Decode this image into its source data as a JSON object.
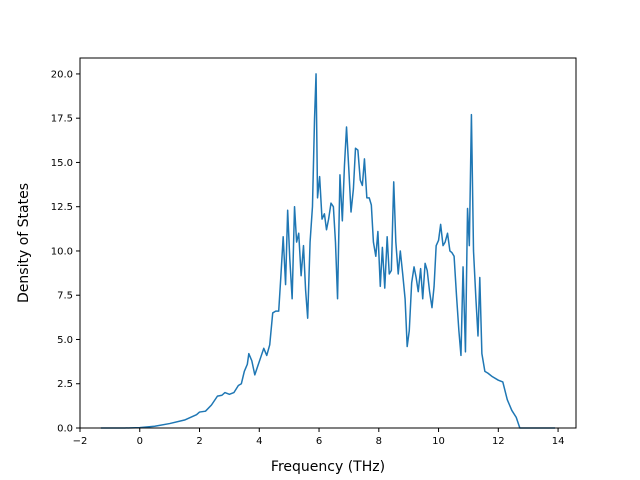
{
  "chart_data": {
    "type": "line",
    "title": "",
    "xlabel": "Frequency (THz)",
    "ylabel": "Density of States",
    "xlim": [
      -2.0,
      14.6
    ],
    "ylim": [
      0,
      20.9
    ],
    "xticks": [
      -2,
      0,
      2,
      4,
      6,
      8,
      10,
      12,
      14
    ],
    "xtick_labels": [
      "−2",
      "0",
      "2",
      "4",
      "6",
      "8",
      "10",
      "12",
      "14"
    ],
    "yticks": [
      0,
      2.5,
      5,
      7.5,
      10,
      12.5,
      15,
      17.5,
      20
    ],
    "ytick_labels": [
      "0.0",
      "2.5",
      "5.0",
      "7.5",
      "10.0",
      "12.5",
      "15.0",
      "17.5",
      "20.0"
    ],
    "grid": false,
    "legend": "none",
    "series": [
      {
        "color": "#1f77b4",
        "points": [
          [
            -1.3,
            0.0
          ],
          [
            -0.5,
            0.0
          ],
          [
            0.0,
            0.02
          ],
          [
            0.5,
            0.1
          ],
          [
            1.0,
            0.25
          ],
          [
            1.5,
            0.45
          ],
          [
            1.9,
            0.75
          ],
          [
            2.0,
            0.9
          ],
          [
            2.2,
            0.95
          ],
          [
            2.4,
            1.3
          ],
          [
            2.6,
            1.8
          ],
          [
            2.75,
            1.85
          ],
          [
            2.85,
            2.0
          ],
          [
            3.0,
            1.9
          ],
          [
            3.15,
            2.0
          ],
          [
            3.3,
            2.4
          ],
          [
            3.4,
            2.5
          ],
          [
            3.5,
            3.2
          ],
          [
            3.6,
            3.6
          ],
          [
            3.65,
            4.2
          ],
          [
            3.75,
            3.8
          ],
          [
            3.85,
            3.0
          ],
          [
            3.95,
            3.5
          ],
          [
            4.05,
            4.0
          ],
          [
            4.15,
            4.5
          ],
          [
            4.25,
            4.1
          ],
          [
            4.35,
            4.7
          ],
          [
            4.45,
            6.5
          ],
          [
            4.55,
            6.6
          ],
          [
            4.65,
            6.6
          ],
          [
            4.72,
            8.5
          ],
          [
            4.8,
            10.8
          ],
          [
            4.88,
            8.1
          ],
          [
            4.95,
            12.3
          ],
          [
            5.02,
            9.6
          ],
          [
            5.1,
            7.3
          ],
          [
            5.18,
            12.5
          ],
          [
            5.25,
            10.5
          ],
          [
            5.32,
            11.0
          ],
          [
            5.4,
            8.6
          ],
          [
            5.48,
            10.3
          ],
          [
            5.55,
            7.8
          ],
          [
            5.62,
            6.2
          ],
          [
            5.7,
            10.5
          ],
          [
            5.78,
            12.5
          ],
          [
            5.85,
            17.5
          ],
          [
            5.9,
            20.0
          ],
          [
            5.95,
            13.0
          ],
          [
            6.02,
            14.2
          ],
          [
            6.1,
            11.8
          ],
          [
            6.18,
            12.1
          ],
          [
            6.25,
            11.2
          ],
          [
            6.32,
            11.8
          ],
          [
            6.4,
            12.7
          ],
          [
            6.48,
            12.5
          ],
          [
            6.55,
            10.5
          ],
          [
            6.62,
            7.3
          ],
          [
            6.7,
            14.3
          ],
          [
            6.78,
            11.7
          ],
          [
            6.85,
            14.8
          ],
          [
            6.92,
            17.0
          ],
          [
            7.0,
            14.5
          ],
          [
            7.07,
            12.2
          ],
          [
            7.15,
            13.5
          ],
          [
            7.22,
            15.8
          ],
          [
            7.3,
            15.7
          ],
          [
            7.38,
            14.0
          ],
          [
            7.45,
            13.7
          ],
          [
            7.52,
            15.2
          ],
          [
            7.6,
            13.0
          ],
          [
            7.68,
            13.0
          ],
          [
            7.75,
            12.6
          ],
          [
            7.82,
            10.5
          ],
          [
            7.9,
            9.7
          ],
          [
            7.97,
            11.1
          ],
          [
            8.05,
            8.0
          ],
          [
            8.12,
            10.2
          ],
          [
            8.2,
            7.9
          ],
          [
            8.28,
            10.8
          ],
          [
            8.35,
            8.7
          ],
          [
            8.42,
            8.9
          ],
          [
            8.5,
            13.9
          ],
          [
            8.57,
            10.5
          ],
          [
            8.65,
            8.7
          ],
          [
            8.72,
            10.0
          ],
          [
            8.8,
            8.7
          ],
          [
            8.88,
            7.3
          ],
          [
            8.95,
            4.6
          ],
          [
            9.02,
            5.5
          ],
          [
            9.1,
            8.2
          ],
          [
            9.18,
            9.1
          ],
          [
            9.25,
            8.5
          ],
          [
            9.32,
            7.7
          ],
          [
            9.4,
            9.0
          ],
          [
            9.47,
            7.3
          ],
          [
            9.55,
            9.3
          ],
          [
            9.62,
            8.9
          ],
          [
            9.7,
            7.7
          ],
          [
            9.78,
            6.8
          ],
          [
            9.85,
            8.0
          ],
          [
            9.92,
            10.3
          ],
          [
            10.0,
            10.6
          ],
          [
            10.07,
            11.5
          ],
          [
            10.15,
            10.3
          ],
          [
            10.22,
            10.5
          ],
          [
            10.3,
            11.0
          ],
          [
            10.38,
            10.0
          ],
          [
            10.45,
            9.9
          ],
          [
            10.52,
            9.7
          ],
          [
            10.6,
            7.5
          ],
          [
            10.68,
            5.5
          ],
          [
            10.75,
            4.1
          ],
          [
            10.82,
            9.1
          ],
          [
            10.9,
            4.3
          ],
          [
            10.97,
            12.4
          ],
          [
            11.03,
            10.3
          ],
          [
            11.1,
            17.7
          ],
          [
            11.17,
            10.0
          ],
          [
            11.25,
            7.3
          ],
          [
            11.32,
            5.2
          ],
          [
            11.38,
            8.5
          ],
          [
            11.45,
            4.2
          ],
          [
            11.55,
            3.2
          ],
          [
            11.65,
            3.1
          ],
          [
            11.8,
            2.9
          ],
          [
            12.0,
            2.7
          ],
          [
            12.15,
            2.6
          ],
          [
            12.3,
            1.6
          ],
          [
            12.45,
            1.0
          ],
          [
            12.6,
            0.6
          ],
          [
            12.72,
            0.0
          ],
          [
            13.2,
            0.0
          ],
          [
            13.9,
            0.0
          ]
        ]
      }
    ]
  }
}
